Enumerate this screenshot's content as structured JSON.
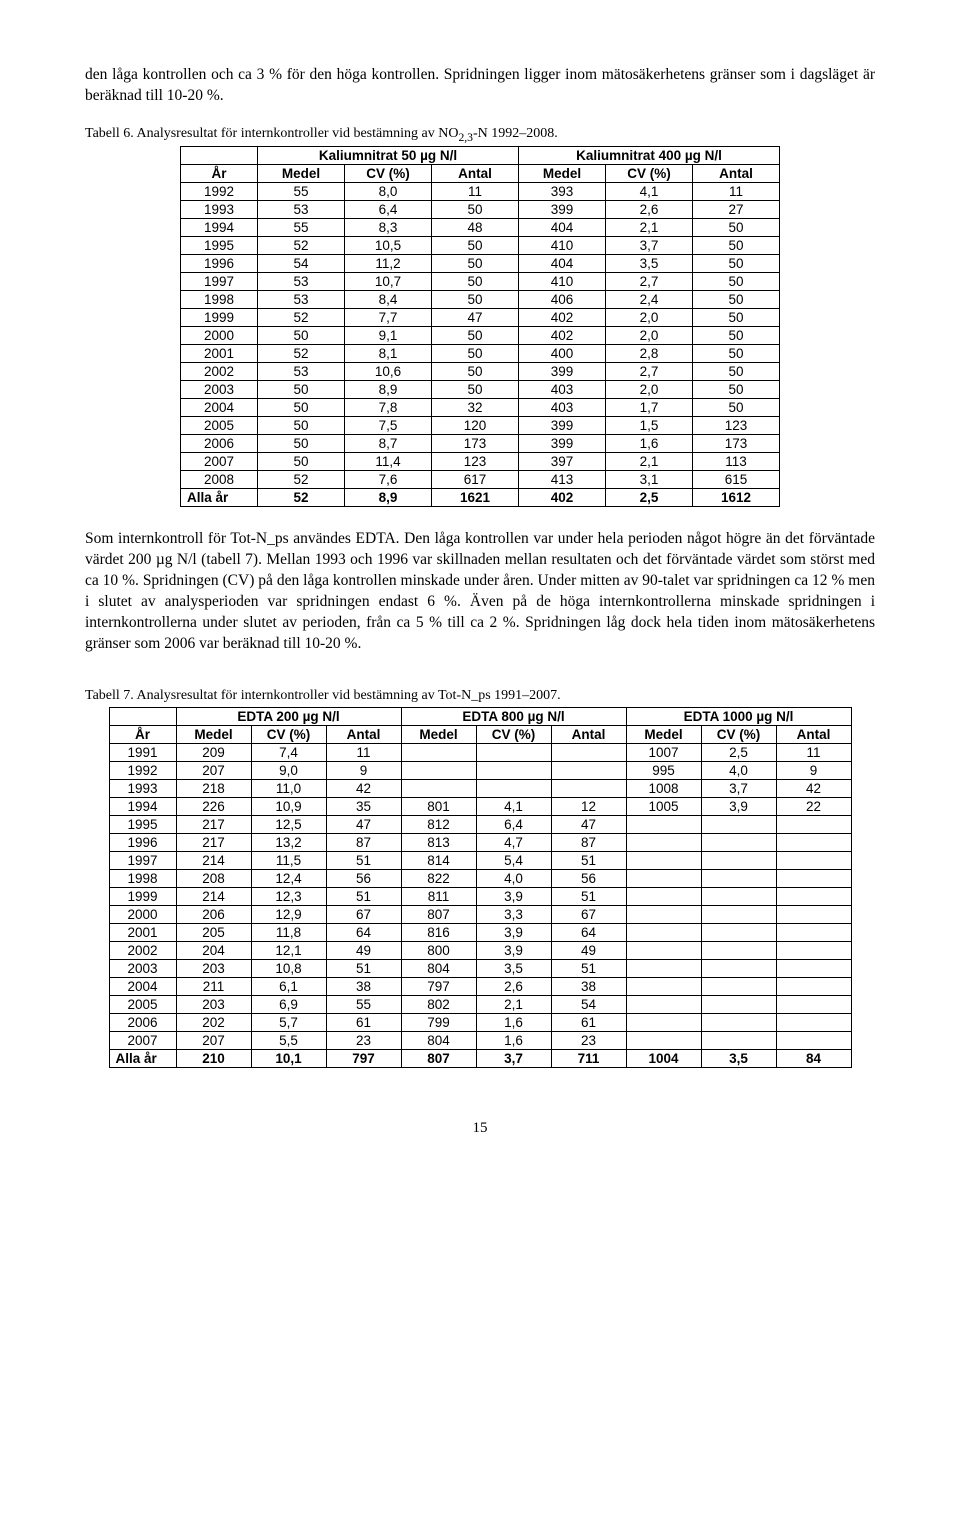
{
  "para1": "den låga kontrollen och ca 3 % för den höga kontrollen. Spridningen ligger inom mätosäkerhetens gränser som i dagsläget är beräknad till 10-20 %.",
  "table6": {
    "caption_prefix": "Tabell 6. Analysresultat för internkontroller vid bestämning av NO",
    "caption_sub": "2,3",
    "caption_suffix": "-N 1992–2008.",
    "group1": "Kaliumnitrat 50 µg N/l",
    "group2": "Kaliumnitrat 400 µg N/l",
    "col0": "År",
    "colA": "Medel",
    "colB": "CV (%)",
    "colC": "Antal",
    "rows": [
      [
        "1992",
        "55",
        "8,0",
        "11",
        "393",
        "4,1",
        "11"
      ],
      [
        "1993",
        "53",
        "6,4",
        "50",
        "399",
        "2,6",
        "27"
      ],
      [
        "1994",
        "55",
        "8,3",
        "48",
        "404",
        "2,1",
        "50"
      ],
      [
        "1995",
        "52",
        "10,5",
        "50",
        "410",
        "3,7",
        "50"
      ],
      [
        "1996",
        "54",
        "11,2",
        "50",
        "404",
        "3,5",
        "50"
      ],
      [
        "1997",
        "53",
        "10,7",
        "50",
        "410",
        "2,7",
        "50"
      ],
      [
        "1998",
        "53",
        "8,4",
        "50",
        "406",
        "2,4",
        "50"
      ],
      [
        "1999",
        "52",
        "7,7",
        "47",
        "402",
        "2,0",
        "50"
      ],
      [
        "2000",
        "50",
        "9,1",
        "50",
        "402",
        "2,0",
        "50"
      ],
      [
        "2001",
        "52",
        "8,1",
        "50",
        "400",
        "2,8",
        "50"
      ],
      [
        "2002",
        "53",
        "10,6",
        "50",
        "399",
        "2,7",
        "50"
      ],
      [
        "2003",
        "50",
        "8,9",
        "50",
        "403",
        "2,0",
        "50"
      ],
      [
        "2004",
        "50",
        "7,8",
        "32",
        "403",
        "1,7",
        "50"
      ],
      [
        "2005",
        "50",
        "7,5",
        "120",
        "399",
        "1,5",
        "123"
      ],
      [
        "2006",
        "50",
        "8,7",
        "173",
        "399",
        "1,6",
        "173"
      ],
      [
        "2007",
        "50",
        "11,4",
        "123",
        "397",
        "2,1",
        "113"
      ],
      [
        "2008",
        "52",
        "7,6",
        "617",
        "413",
        "3,1",
        "615"
      ],
      [
        "Alla år",
        "52",
        "8,9",
        "1621",
        "402",
        "2,5",
        "1612"
      ]
    ]
  },
  "para2": "Som internkontroll för Tot-N_ps användes EDTA. Den låga kontrollen var under hela perioden något högre än det förväntade värdet 200 µg N/l (tabell 7). Mellan 1993 och 1996 var skillnaden mellan resultaten och det förväntade värdet som störst med ca 10 %. Spridningen (CV) på den låga kontrollen minskade under åren. Under mitten av 90-talet var spridningen ca 12 % men i slutet av analysperioden var spridningen endast 6 %. Även på de höga internkontrollerna minskade spridningen i internkontrollerna under slutet av perioden, från ca 5 % till ca 2 %. Spridningen låg dock hela tiden inom mätosäkerhetens gränser som 2006 var beräknad till 10-20 %.",
  "table7": {
    "caption": "Tabell 7. Analysresultat för internkontroller vid bestämning av Tot-N_ps 1991–2007.",
    "group1": "EDTA 200 µg N/l",
    "group2": "EDTA 800 µg N/l",
    "group3": "EDTA 1000 µg N/l",
    "col0": "År",
    "colA": "Medel",
    "colB": "CV (%)",
    "colC": "Antal",
    "rows": [
      [
        "1991",
        "209",
        "7,4",
        "11",
        "",
        "",
        "",
        "1007",
        "2,5",
        "11"
      ],
      [
        "1992",
        "207",
        "9,0",
        "9",
        "",
        "",
        "",
        "995",
        "4,0",
        "9"
      ],
      [
        "1993",
        "218",
        "11,0",
        "42",
        "",
        "",
        "",
        "1008",
        "3,7",
        "42"
      ],
      [
        "1994",
        "226",
        "10,9",
        "35",
        "801",
        "4,1",
        "12",
        "1005",
        "3,9",
        "22"
      ],
      [
        "1995",
        "217",
        "12,5",
        "47",
        "812",
        "6,4",
        "47",
        "",
        "",
        ""
      ],
      [
        "1996",
        "217",
        "13,2",
        "87",
        "813",
        "4,7",
        "87",
        "",
        "",
        ""
      ],
      [
        "1997",
        "214",
        "11,5",
        "51",
        "814",
        "5,4",
        "51",
        "",
        "",
        ""
      ],
      [
        "1998",
        "208",
        "12,4",
        "56",
        "822",
        "4,0",
        "56",
        "",
        "",
        ""
      ],
      [
        "1999",
        "214",
        "12,3",
        "51",
        "811",
        "3,9",
        "51",
        "",
        "",
        ""
      ],
      [
        "2000",
        "206",
        "12,9",
        "67",
        "807",
        "3,3",
        "67",
        "",
        "",
        ""
      ],
      [
        "2001",
        "205",
        "11,8",
        "64",
        "816",
        "3,9",
        "64",
        "",
        "",
        ""
      ],
      [
        "2002",
        "204",
        "12,1",
        "49",
        "800",
        "3,9",
        "49",
        "",
        "",
        ""
      ],
      [
        "2003",
        "203",
        "10,8",
        "51",
        "804",
        "3,5",
        "51",
        "",
        "",
        ""
      ],
      [
        "2004",
        "211",
        "6,1",
        "38",
        "797",
        "2,6",
        "38",
        "",
        "",
        ""
      ],
      [
        "2005",
        "203",
        "6,9",
        "55",
        "802",
        "2,1",
        "54",
        "",
        "",
        ""
      ],
      [
        "2006",
        "202",
        "5,7",
        "61",
        "799",
        "1,6",
        "61",
        "",
        "",
        ""
      ],
      [
        "2007",
        "207",
        "5,5",
        "23",
        "804",
        "1,6",
        "23",
        "",
        "",
        ""
      ],
      [
        "Alla år",
        "210",
        "10,1",
        "797",
        "807",
        "3,7",
        "711",
        "1004",
        "3,5",
        "84"
      ]
    ]
  },
  "page_number": "15"
}
